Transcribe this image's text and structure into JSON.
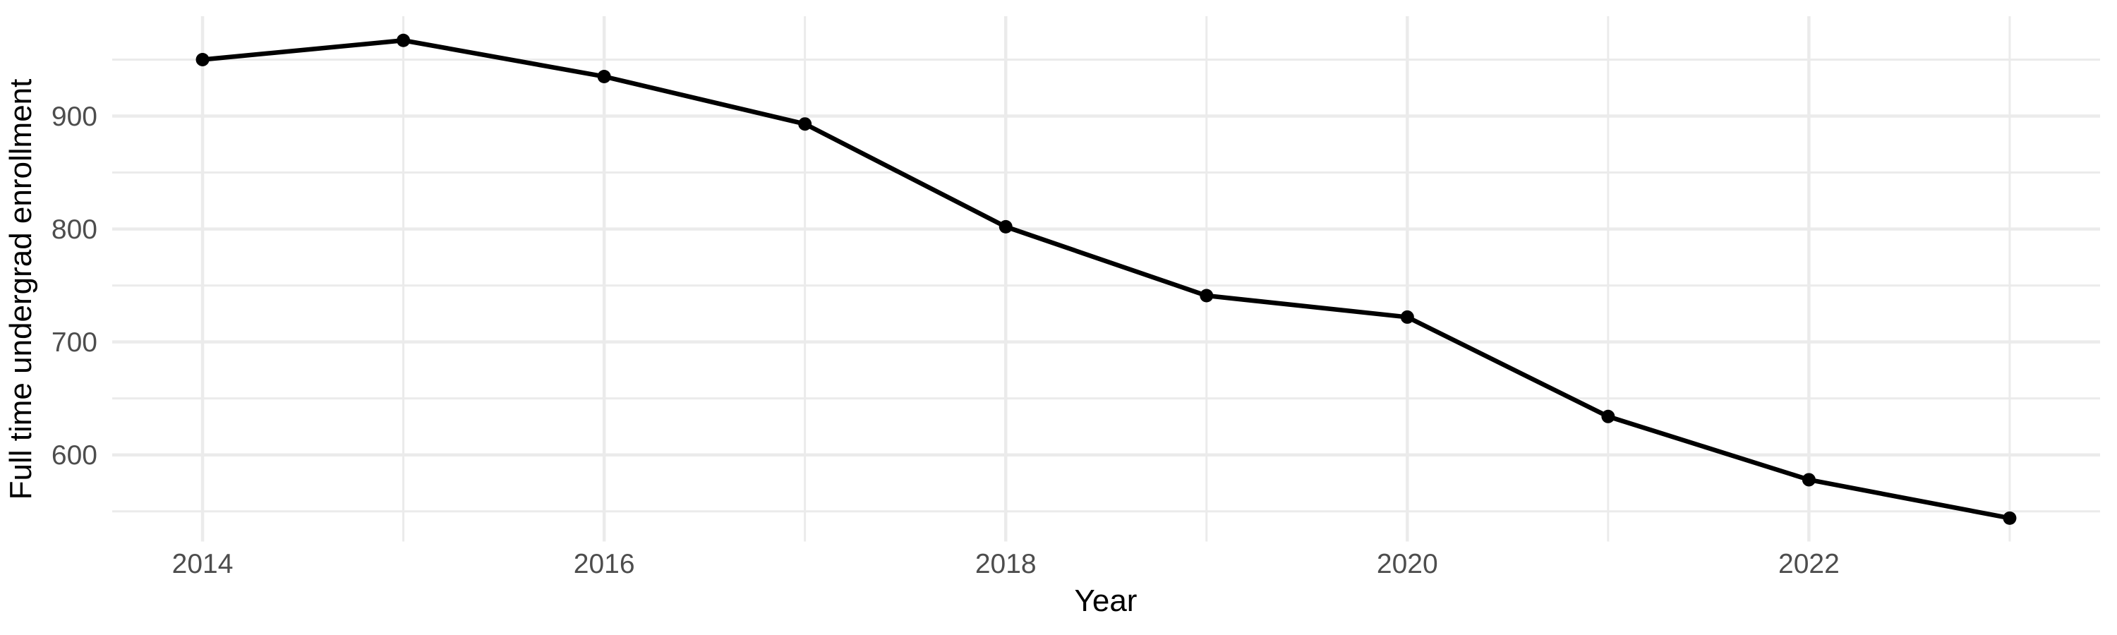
{
  "chart_data": {
    "type": "line",
    "title": "",
    "xlabel": "Year",
    "ylabel": "Full time undergrad enrollment",
    "x": [
      2014,
      2015,
      2016,
      2017,
      2018,
      2019,
      2020,
      2021,
      2022,
      2023
    ],
    "series": [
      {
        "name": "Full time undergrad enrollment",
        "values": [
          950,
          967,
          935,
          893,
          802,
          741,
          722,
          634,
          578,
          544
        ]
      }
    ],
    "xlim": [
      2013.55,
      2023.45
    ],
    "ylim": [
      523.3,
      988.4
    ],
    "x_major_ticks": [
      2014,
      2016,
      2018,
      2020,
      2022
    ],
    "x_minor_ticks": [
      2015,
      2017,
      2019,
      2021,
      2023
    ],
    "y_major_ticks": [
      600,
      700,
      800,
      900
    ],
    "y_minor_ticks": [
      550,
      650,
      750,
      850,
      950
    ],
    "x_tick_labels": [
      "2014",
      "2016",
      "2018",
      "2020",
      "2022"
    ],
    "y_tick_labels": [
      "600",
      "700",
      "800",
      "900"
    ],
    "grid": true,
    "legend_position": "none",
    "colors": {
      "background": "#ffffff",
      "grid_major": "#ebebeb",
      "grid_minor": "#ebebeb",
      "line": "#000000",
      "point": "#000000",
      "tick_label": "#4d4d4d",
      "axis_title": "#000000"
    }
  }
}
